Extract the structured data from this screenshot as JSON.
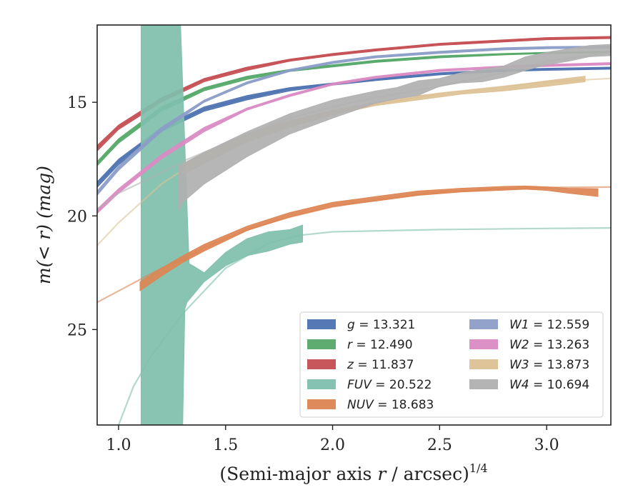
{
  "chart_data": {
    "type": "area",
    "title": "",
    "xlabel_main": "(Semi-major axis ",
    "xlabel_var": "r",
    "xlabel_unit": " / arcsec)",
    "xlabel_sup": "1/4",
    "ylabel_main": "m(< r) (mag)",
    "xlim": [
      0.9,
      3.3
    ],
    "ylim": [
      29.2,
      11.6
    ],
    "y_inverted": true,
    "x_ticks": [
      1.0,
      1.5,
      2.0,
      2.5,
      3.0
    ],
    "x_tick_labels": [
      "1.0",
      "1.5",
      "2.0",
      "2.5",
      "3.0"
    ],
    "y_ticks": [
      15,
      20,
      25
    ],
    "y_tick_labels": [
      "15",
      "20",
      "25"
    ],
    "grid": false,
    "legend_position": "bottom-right",
    "series": [
      {
        "name": "g = 13.321",
        "color": "#4c72b0",
        "curve": {
          "x": [
            0.9,
            1.0,
            1.2,
            1.4,
            1.6,
            1.8,
            2.0,
            2.2,
            2.5,
            2.8,
            3.0,
            3.3
          ],
          "y": [
            18.6,
            17.6,
            16.2,
            15.3,
            14.8,
            14.4,
            14.2,
            14.0,
            13.75,
            13.6,
            13.55,
            13.5
          ]
        },
        "band": {
          "x": [
            0.9,
            1.0,
            1.2,
            1.4,
            1.6,
            1.8,
            2.0,
            2.2,
            2.5,
            2.8,
            3.0,
            3.3
          ],
          "y_upper": [
            18.5,
            17.5,
            16.1,
            15.2,
            14.7,
            14.35,
            14.15,
            13.95,
            13.7,
            13.55,
            13.5,
            13.45
          ],
          "y_lower": [
            18.75,
            17.75,
            16.3,
            15.4,
            14.9,
            14.5,
            14.25,
            14.05,
            13.8,
            13.65,
            13.6,
            13.55
          ]
        }
      },
      {
        "name": "r = 12.490",
        "color": "#55a868",
        "curve": {
          "x": [
            0.9,
            1.0,
            1.2,
            1.4,
            1.6,
            1.8,
            2.0,
            2.2,
            2.5,
            2.8,
            3.0,
            3.3
          ],
          "y": [
            17.7,
            16.7,
            15.3,
            14.4,
            13.9,
            13.6,
            13.4,
            13.2,
            13.0,
            12.88,
            12.82,
            12.78
          ]
        },
        "band": {
          "x": [
            0.9,
            1.0,
            1.2,
            1.4,
            1.6,
            1.8,
            2.0,
            2.2,
            2.5,
            2.8,
            3.0,
            3.3
          ],
          "y_upper": [
            17.6,
            16.6,
            15.2,
            14.35,
            13.85,
            13.55,
            13.35,
            13.15,
            12.95,
            12.85,
            12.8,
            12.75
          ],
          "y_lower": [
            17.8,
            16.8,
            15.4,
            14.5,
            14.0,
            13.65,
            13.45,
            13.25,
            13.05,
            12.92,
            12.86,
            12.82
          ]
        }
      },
      {
        "name": "z = 11.837",
        "color": "#c44e52",
        "curve": {
          "x": [
            0.9,
            1.0,
            1.2,
            1.4,
            1.6,
            1.8,
            2.0,
            2.2,
            2.5,
            2.8,
            3.0,
            3.3
          ],
          "y": [
            17.0,
            16.1,
            14.9,
            14.0,
            13.5,
            13.15,
            12.9,
            12.7,
            12.45,
            12.3,
            12.2,
            12.15
          ]
        },
        "band": {
          "x": [
            0.9,
            1.0,
            1.2,
            1.4,
            1.6,
            1.8,
            2.0,
            2.2,
            2.5,
            2.8,
            3.0,
            3.3
          ],
          "y_upper": [
            16.9,
            16.0,
            14.8,
            13.95,
            13.45,
            13.1,
            12.85,
            12.65,
            12.4,
            12.25,
            12.15,
            12.1
          ],
          "y_lower": [
            17.15,
            16.2,
            15.0,
            14.1,
            13.6,
            13.2,
            12.95,
            12.75,
            12.5,
            12.35,
            12.25,
            12.2
          ]
        }
      },
      {
        "name": "FUV = 20.522",
        "color": "#7fbfad",
        "curve": {
          "x": [
            0.9,
            1.0,
            1.07,
            1.15,
            1.3,
            1.5,
            1.7,
            1.85,
            2.0,
            2.5,
            3.0,
            3.3
          ],
          "y": [
            31.0,
            29.2,
            27.5,
            26.2,
            24.3,
            22.3,
            21.2,
            20.85,
            20.7,
            20.6,
            20.55,
            20.53
          ]
        },
        "band": {
          "x": [
            1.105,
            1.29,
            1.33,
            1.35,
            1.4,
            1.5,
            1.6,
            1.7,
            1.8,
            1.86,
            1.86,
            1.8,
            1.7,
            1.6,
            1.5,
            1.4,
            1.32,
            1.31,
            1.3,
            1.29,
            1.105
          ],
          "y": [
            11.6,
            11.6,
            22.1,
            22.2,
            22.5,
            21.6,
            21.0,
            20.7,
            20.6,
            20.4,
            21.15,
            21.25,
            21.55,
            21.75,
            22.2,
            22.9,
            23.8,
            24.1,
            29.2,
            29.2,
            29.2
          ]
        }
      },
      {
        "name": "NUV = 18.683",
        "color": "#dd8452",
        "curve": {
          "x": [
            0.9,
            1.0,
            1.1,
            1.2,
            1.3,
            1.4,
            1.6,
            1.8,
            2.0,
            2.2,
            2.5,
            2.8,
            3.0,
            3.3
          ],
          "y": [
            23.8,
            23.3,
            22.8,
            22.3,
            21.9,
            21.4,
            20.6,
            20.05,
            19.6,
            19.3,
            18.95,
            18.8,
            18.75,
            18.73
          ]
        },
        "band": {
          "x": [
            1.1,
            1.2,
            1.3,
            1.4,
            1.5,
            1.6,
            1.7,
            1.8,
            2.0,
            2.2,
            2.4,
            2.6,
            2.8,
            2.9,
            3.0,
            3.1,
            3.24
          ],
          "y_upper": [
            22.9,
            22.3,
            21.75,
            21.25,
            20.85,
            20.45,
            20.15,
            19.85,
            19.4,
            19.15,
            18.9,
            18.78,
            18.7,
            18.68,
            18.72,
            18.78,
            18.8
          ],
          "y_lower": [
            23.3,
            22.65,
            22.05,
            21.55,
            21.1,
            20.65,
            20.35,
            20.05,
            19.6,
            19.35,
            19.1,
            18.95,
            18.87,
            18.83,
            18.88,
            19.0,
            19.15
          ]
        }
      },
      {
        "name": "W1 = 12.559",
        "color": "#8c9dc8",
        "curve": {
          "x": [
            0.9,
            1.0,
            1.2,
            1.4,
            1.6,
            1.8,
            2.0,
            2.2,
            2.5,
            2.8,
            3.0,
            3.3
          ],
          "y": [
            19.0,
            17.9,
            16.2,
            14.95,
            14.15,
            13.6,
            13.25,
            13.0,
            12.8,
            12.65,
            12.6,
            12.57
          ]
        },
        "band": {
          "x": [
            0.9,
            1.0,
            1.2,
            1.4,
            1.6,
            1.8,
            2.0,
            2.2,
            2.5,
            2.8,
            3.0,
            3.3
          ],
          "y_upper": [
            18.9,
            17.8,
            16.1,
            14.9,
            14.1,
            13.55,
            13.2,
            12.95,
            12.75,
            12.6,
            12.55,
            12.52
          ],
          "y_lower": [
            19.1,
            18.0,
            16.3,
            15.0,
            14.2,
            13.65,
            13.3,
            13.05,
            12.85,
            12.7,
            12.65,
            12.62
          ]
        }
      },
      {
        "name": "W2 = 13.263",
        "color": "#da8bc3",
        "curve": {
          "x": [
            0.9,
            1.0,
            1.2,
            1.4,
            1.6,
            1.8,
            2.0,
            2.2,
            2.5,
            2.8,
            3.0,
            3.3
          ],
          "y": [
            19.8,
            18.9,
            17.4,
            16.2,
            15.3,
            14.7,
            14.2,
            13.9,
            13.6,
            13.45,
            13.38,
            13.3
          ]
        },
        "band": {
          "x": [
            0.9,
            1.0,
            1.2,
            1.4,
            1.6,
            1.8,
            2.0,
            2.2,
            2.5,
            2.8,
            3.0,
            3.3
          ],
          "y_upper": [
            19.7,
            18.8,
            17.3,
            16.1,
            15.25,
            14.65,
            14.15,
            13.85,
            13.55,
            13.4,
            13.33,
            13.25
          ],
          "y_lower": [
            19.9,
            19.0,
            17.5,
            16.3,
            15.35,
            14.75,
            14.25,
            13.95,
            13.65,
            13.5,
            13.43,
            13.35
          ]
        }
      },
      {
        "name": "W3 = 13.873",
        "color": "#ddc195",
        "curve": {
          "x": [
            0.9,
            1.0,
            1.2,
            1.4,
            1.6,
            1.8,
            2.0,
            2.2,
            2.5,
            2.8,
            3.0,
            3.3
          ],
          "y": [
            21.3,
            20.3,
            18.6,
            17.35,
            16.5,
            15.9,
            15.45,
            15.1,
            14.6,
            14.3,
            14.1,
            13.95
          ]
        },
        "band": {
          "x": [
            1.3,
            1.4,
            1.6,
            1.8,
            2.0,
            2.2,
            2.4,
            2.6,
            2.8,
            3.0,
            3.18
          ],
          "y_upper": [
            17.7,
            17.25,
            16.4,
            15.8,
            15.35,
            15.0,
            14.7,
            14.5,
            14.3,
            14.05,
            13.85
          ],
          "y_lower": [
            18.2,
            17.7,
            16.75,
            16.1,
            15.55,
            15.15,
            14.9,
            14.65,
            14.5,
            14.3,
            14.1
          ]
        }
      },
      {
        "name": "W4 = 10.694",
        "color": "#b0b0b0",
        "curve": {
          "x": [
            0.9,
            1.0,
            1.2,
            1.3,
            1.4,
            1.6,
            1.8,
            2.0,
            2.2,
            2.5,
            2.8,
            3.0,
            3.3
          ],
          "y": [
            19.7,
            19.0,
            18.1,
            17.6,
            17.2,
            16.4,
            15.7,
            15.2,
            14.8,
            14.3,
            13.7,
            13.2,
            12.8
          ]
        },
        "band": {
          "x": [
            1.28,
            1.3,
            1.4,
            1.6,
            1.8,
            2.0,
            2.2,
            2.3,
            2.4,
            2.5,
            2.6,
            2.7,
            2.8,
            2.9,
            3.0,
            3.1,
            3.2,
            3.3
          ],
          "y_upper": [
            17.8,
            17.7,
            17.2,
            16.3,
            15.5,
            14.9,
            14.5,
            14.35,
            14.05,
            13.95,
            13.7,
            13.55,
            13.4,
            13.0,
            12.8,
            12.65,
            12.5,
            12.45
          ],
          "y_lower": [
            19.8,
            19.4,
            18.6,
            17.4,
            16.4,
            15.7,
            15.05,
            14.85,
            14.7,
            14.3,
            14.15,
            14.1,
            13.9,
            13.6,
            13.35,
            13.2,
            13.0,
            12.95
          ]
        }
      }
    ]
  }
}
